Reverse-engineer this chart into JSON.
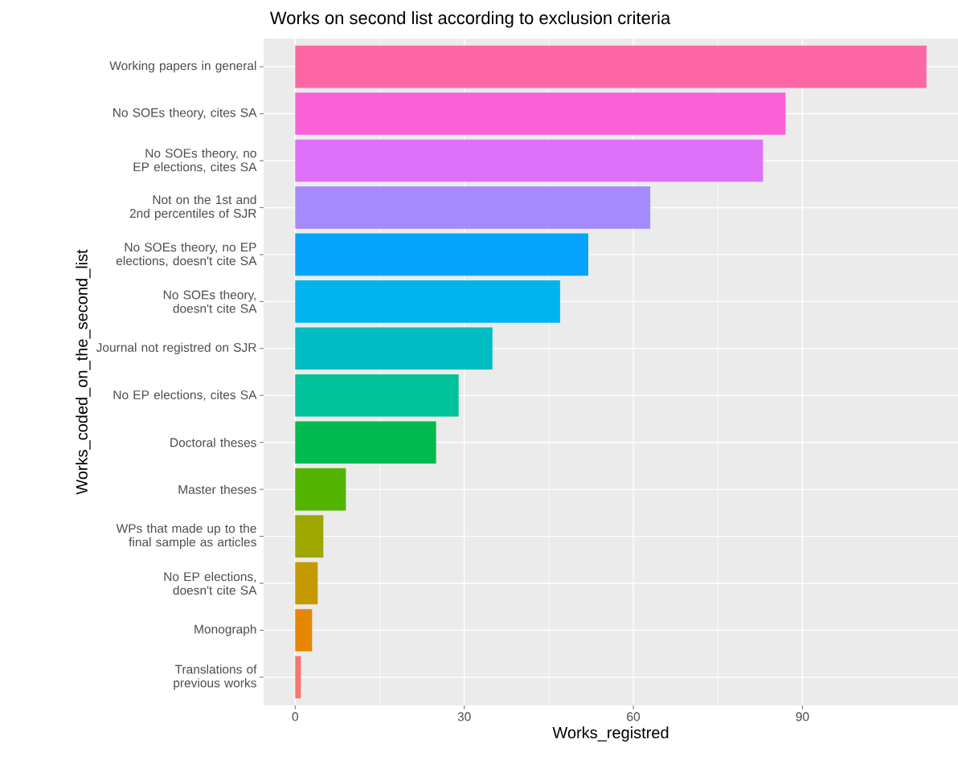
{
  "chart_data": {
    "type": "bar",
    "orientation": "horizontal",
    "title": "Works on second list according to exclusion criteria",
    "xlabel": "Works_registred",
    "ylabel": "Works_coded_on_the_second_list",
    "categories": [
      "Working papers in general",
      "No SOEs theory, cites SA",
      "No SOEs theory, no EP elections, cites SA",
      "Not on the 1st and 2nd percentiles of SJR",
      "No SOEs theory, no EP elections, doesn't cite SA",
      "No SOEs theory, doesn't cite SA",
      "Journal not registred on SJR",
      "No EP elections, cites SA",
      "Doctoral theses",
      "Master theses",
      "WPs that made up to the final sample as articles",
      "No EP elections, doesn't cite SA",
      "Monograph",
      "Translations of previous works"
    ],
    "values": [
      112,
      87,
      83,
      63,
      52,
      47,
      35,
      29,
      25,
      9,
      5,
      4,
      3,
      1
    ],
    "colors": [
      "#ff67a4",
      "#fb61d7",
      "#de71f9",
      "#a58aff",
      "#06a4ff",
      "#00b4ef",
      "#00bdc4",
      "#00c19a",
      "#00ba4e",
      "#53b400",
      "#9da700",
      "#c49a00",
      "#e58700",
      "#f8766d"
    ],
    "xlim": [
      -5.6,
      117.6
    ],
    "xticks": [
      0,
      30,
      60,
      90
    ],
    "grid": true
  }
}
